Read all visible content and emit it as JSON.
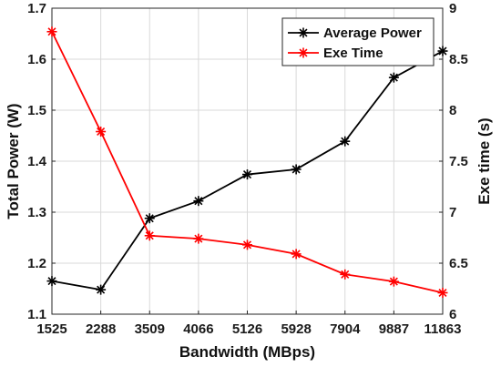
{
  "chart_data": {
    "type": "line",
    "xlabel": "Bandwidth (MBps)",
    "ylabel": "Total Power (W)",
    "y2label": "Exe time (s)",
    "categories": [
      "1525",
      "2288",
      "3509",
      "4066",
      "5126",
      "5928",
      "7904",
      "9887",
      "11863"
    ],
    "ylim": [
      1.1,
      1.7
    ],
    "y_ticks": [
      "1.1",
      "1.2",
      "1.3",
      "1.4",
      "1.5",
      "1.6",
      "1.7"
    ],
    "y2lim": [
      6,
      9
    ],
    "y2_ticks": [
      "6",
      "6.5",
      "7",
      "7.5",
      "8",
      "8.5",
      "9"
    ],
    "grid": true,
    "legend_position": "top-right",
    "series": [
      {
        "name": "Average Power",
        "axis": "left",
        "color": "#000000",
        "marker": "asterisk",
        "values": [
          1.165,
          1.148,
          1.288,
          1.322,
          1.374,
          1.384,
          1.439,
          1.564,
          1.616
        ]
      },
      {
        "name": "Exe Time",
        "axis": "right",
        "color": "#ff0000",
        "marker": "asterisk",
        "values": [
          8.77,
          7.79,
          6.77,
          6.74,
          6.68,
          6.59,
          6.39,
          6.32,
          6.21
        ]
      }
    ]
  }
}
